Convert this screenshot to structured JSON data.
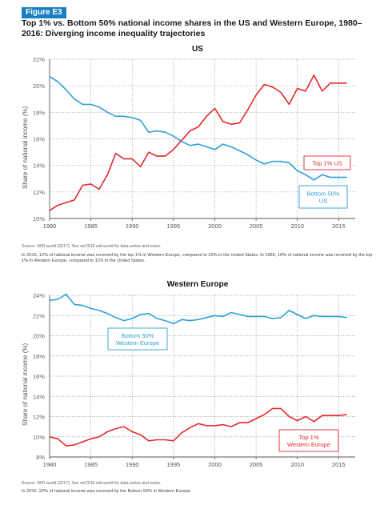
{
  "figure": {
    "label": "Figure E3",
    "title": "Top 1% vs. Bottom 50% national income shares in the US and Western Europe, 1980–2016: Diverging income inequality trajectories"
  },
  "colors": {
    "red": "#e32b2f",
    "blue": "#2e9fd8",
    "grid": "#9a9a9a",
    "axis": "#555555",
    "figlabel": "#1a7fc1"
  },
  "panels": [
    {
      "title": "US",
      "source": "Source: WID.world (2017). See wir2018.wid.world for data series and notes.",
      "note": "In 2016, 12% of national income was received by the top 1% in Western Europe, compared to 20% in the United States. In 1980, 10% of national income was received by the top 1% in Western Europe, compared to 11% in the United States."
    },
    {
      "title": "Western Europe",
      "source": "Source: WID.world (2017). See wir2018.wid.world for data series and notes.",
      "note": "In 2016, 22% of national income was received by the Bottom 50% in Western Europe."
    }
  ],
  "chart_data": [
    {
      "type": "line",
      "title": "US",
      "xlabel": "",
      "ylabel": "Share of national income (%)",
      "xlim": [
        1980,
        2017
      ],
      "ylim": [
        10,
        22
      ],
      "xticks": [
        "1980",
        "1985",
        "1990",
        "1995",
        "2000",
        "2005",
        "2010",
        "2015"
      ],
      "yticks": [
        "10%",
        "12%",
        "14%",
        "16%",
        "18%",
        "20%",
        "22%"
      ],
      "x": [
        1980,
        1981,
        1982,
        1983,
        1984,
        1985,
        1986,
        1987,
        1988,
        1989,
        1990,
        1991,
        1992,
        1993,
        1994,
        1995,
        1996,
        1997,
        1998,
        1999,
        2000,
        2001,
        2002,
        2003,
        2004,
        2005,
        2006,
        2007,
        2008,
        2009,
        2010,
        2011,
        2012,
        2013,
        2014,
        2015,
        2016
      ],
      "series": [
        {
          "name": "Top 1% US",
          "color": "red",
          "labelLines": [
            "Top 1% US"
          ],
          "values": [
            10.6,
            11.0,
            11.2,
            11.4,
            12.5,
            12.6,
            12.2,
            13.3,
            14.9,
            14.5,
            14.5,
            13.9,
            15.0,
            14.7,
            14.7,
            15.2,
            15.9,
            16.6,
            16.9,
            17.7,
            18.3,
            17.3,
            17.1,
            17.2,
            18.2,
            19.3,
            20.1,
            19.9,
            19.5,
            18.6,
            19.8,
            19.6,
            20.8,
            19.6,
            20.2,
            20.2,
            20.2
          ]
        },
        {
          "name": "Bottom 50% US",
          "color": "blue",
          "labelLines": [
            "Bottom 50%",
            "US"
          ],
          "values": [
            20.7,
            20.3,
            19.7,
            19.0,
            18.6,
            18.6,
            18.4,
            18.0,
            17.7,
            17.7,
            17.6,
            17.4,
            16.5,
            16.6,
            16.5,
            16.2,
            15.8,
            15.5,
            15.6,
            15.4,
            15.2,
            15.6,
            15.4,
            15.1,
            14.8,
            14.4,
            14.1,
            14.3,
            14.3,
            14.2,
            13.6,
            13.3,
            12.9,
            13.3,
            13.1,
            13.1,
            13.1
          ]
        }
      ]
    },
    {
      "type": "line",
      "title": "Western Europe",
      "xlabel": "",
      "ylabel": "Share of national income (%)",
      "xlim": [
        1980,
        2017
      ],
      "ylim": [
        8,
        24
      ],
      "xticks": [
        "1980",
        "1985",
        "1990",
        "1995",
        "2000",
        "2005",
        "2010",
        "2015"
      ],
      "yticks": [
        "8%",
        "10%",
        "12%",
        "14%",
        "16%",
        "18%",
        "20%",
        "22%",
        "24%"
      ],
      "x": [
        1980,
        1981,
        1982,
        1983,
        1984,
        1985,
        1986,
        1987,
        1988,
        1989,
        1990,
        1991,
        1992,
        1993,
        1994,
        1995,
        1996,
        1997,
        1998,
        1999,
        2000,
        2001,
        2002,
        2003,
        2004,
        2005,
        2006,
        2007,
        2008,
        2009,
        2010,
        2011,
        2012,
        2013,
        2014,
        2015,
        2016
      ],
      "series": [
        {
          "name": "Top 1% Western Europe",
          "color": "red",
          "labelLines": [
            "Top 1%",
            "Western Europe"
          ],
          "values": [
            10.0,
            9.8,
            9.1,
            9.2,
            9.5,
            9.8,
            10.0,
            10.5,
            10.8,
            11.0,
            10.5,
            10.2,
            9.6,
            9.7,
            9.7,
            9.6,
            10.4,
            10.9,
            11.3,
            11.1,
            11.1,
            11.2,
            11.0,
            11.4,
            11.4,
            11.8,
            12.2,
            12.8,
            12.8,
            12.0,
            11.6,
            12.0,
            11.5,
            12.1,
            12.1,
            12.1,
            12.2
          ]
        },
        {
          "name": "Bottom 50% Western Europe",
          "color": "blue",
          "labelLines": [
            "Bottom 50%",
            "Western Europe"
          ],
          "values": [
            23.5,
            23.6,
            24.1,
            23.1,
            23.0,
            22.7,
            22.5,
            22.2,
            21.8,
            21.5,
            21.7,
            22.1,
            22.2,
            21.7,
            21.5,
            21.2,
            21.6,
            21.5,
            21.6,
            21.8,
            22.0,
            21.9,
            22.3,
            22.1,
            21.9,
            21.9,
            21.9,
            21.7,
            21.8,
            22.5,
            22.1,
            21.7,
            22.0,
            21.9,
            21.9,
            21.9,
            21.8
          ]
        }
      ]
    }
  ]
}
